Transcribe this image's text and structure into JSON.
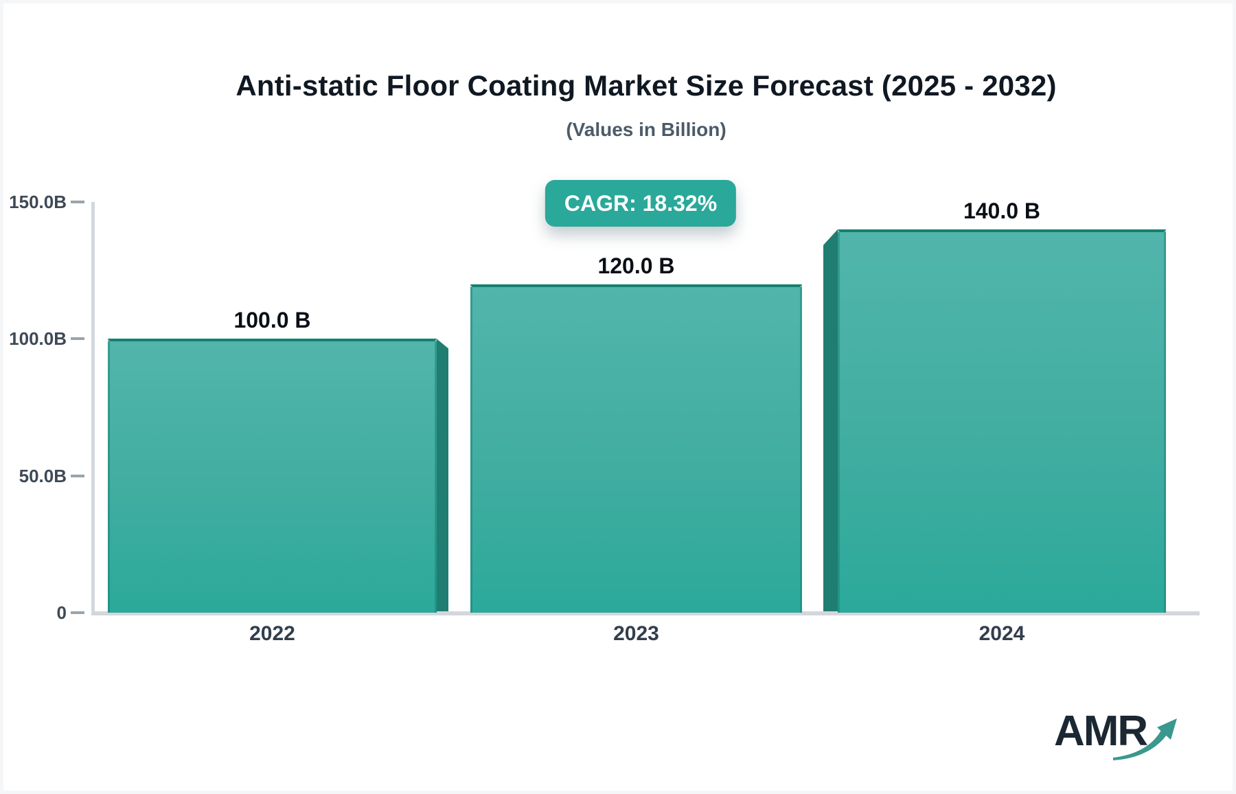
{
  "title": "Anti-static Floor Coating Market Size Forecast (2025 - 2032)",
  "subtitle": "(Values in Billion)",
  "badge": {
    "label": "CAGR: 18.32%",
    "bg_color": "#2aa89a",
    "text_color": "#ffffff"
  },
  "chart_data": {
    "type": "bar",
    "title": "Anti-static Floor Coating Market Size Forecast (2025 - 2032)",
    "subtitle": "(Values in Billion)",
    "unit": "Billion",
    "categories": [
      "2022",
      "2023",
      "2024"
    ],
    "values": [
      100.0,
      120.0,
      140.0
    ],
    "value_labels": [
      "100.0 B",
      "120.0 B",
      "140.0 B"
    ],
    "cagr_annotation": "CAGR: 18.32%",
    "ylim": [
      0,
      150
    ],
    "yticks": [
      {
        "label": "150.0B",
        "value": 150
      },
      {
        "label": "100.0B",
        "value": 100
      },
      {
        "label": "50.0B",
        "value": 50
      },
      {
        "label": "0",
        "value": 0
      }
    ],
    "xlabel": "",
    "ylabel": "",
    "grid": false,
    "legend": false,
    "colors": {
      "bar_gradient_top": "#52b5ab",
      "bar_gradient_bottom": "#2ba99a",
      "bar_stroke": "#15806f",
      "bar_side_face": "#1f7d72",
      "axis_line": "#d3d7dd",
      "tick_mark": "#9aa3ad",
      "badge_bg": "#2aa89a"
    }
  },
  "logo": {
    "text": "AMR",
    "text_color": "#1b2733",
    "arrow_color": "#3a988e",
    "arrow_icon": "growth-arrow-icon"
  }
}
